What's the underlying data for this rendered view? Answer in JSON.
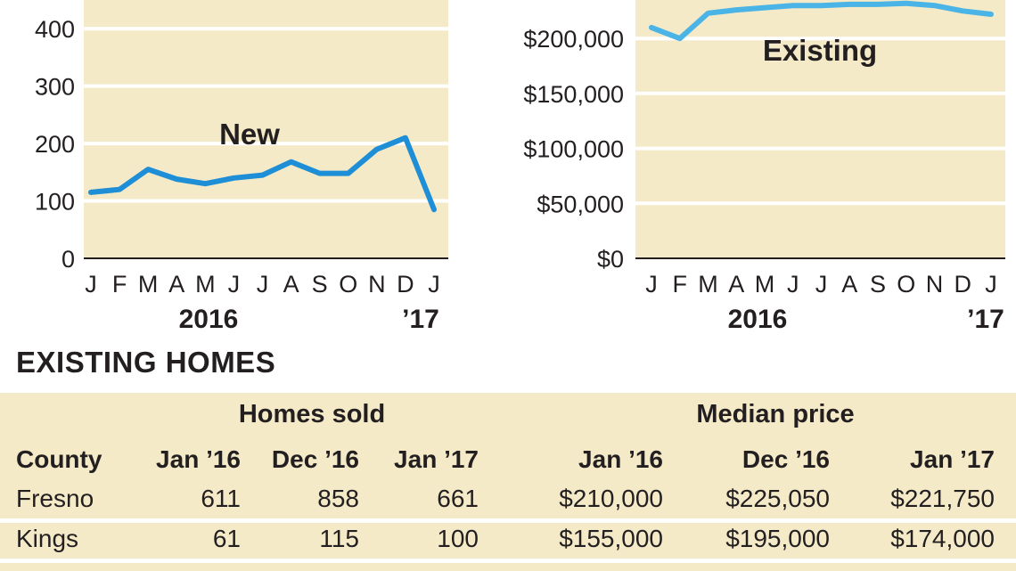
{
  "charts": [
    {
      "type": "line",
      "x": [
        "J",
        "F",
        "M",
        "A",
        "M",
        "J",
        "J",
        "A",
        "S",
        "O",
        "N",
        "D",
        "J"
      ],
      "values": [
        115,
        120,
        155,
        138,
        130,
        140,
        145,
        168,
        148,
        148,
        190,
        210,
        85
      ],
      "ylim": [
        0,
        450
      ],
      "y_ticks": [
        0,
        100,
        200,
        300,
        400
      ],
      "y_tick_labels": [
        "0",
        "100",
        "200",
        "300",
        "400"
      ],
      "year_labels": [
        "2016",
        "’17"
      ],
      "annotation": "New",
      "grid": true,
      "line_color": "#1e8fd6",
      "plot_bg": "#f4eac8"
    },
    {
      "type": "line",
      "x": [
        "J",
        "F",
        "M",
        "A",
        "M",
        "J",
        "J",
        "A",
        "S",
        "O",
        "N",
        "D",
        "J"
      ],
      "values": [
        210000,
        200000,
        223000,
        226000,
        228000,
        230000,
        230000,
        231000,
        231000,
        232000,
        230000,
        225000,
        222000
      ],
      "ylim": [
        0,
        235000
      ],
      "y_ticks": [
        0,
        50000,
        100000,
        150000,
        200000
      ],
      "y_tick_labels": [
        "$0",
        "$50,000",
        "$100,000",
        "$150,000",
        "$200,000"
      ],
      "year_labels": [
        "2016",
        "’17"
      ],
      "annotation": "Existing",
      "grid": true,
      "line_color": "#4ab4e6",
      "plot_bg": "#f4eac8"
    }
  ],
  "table": {
    "section_title": "EXISTING HOMES",
    "group_headers": [
      "Homes sold",
      "Median price"
    ],
    "columns": [
      "County",
      "Jan ’16",
      "Dec ’16",
      "Jan ’17",
      "Jan ’16",
      "Dec ’16",
      "Jan ’17"
    ],
    "rows": [
      [
        "Fresno",
        "611",
        "858",
        "661",
        "$210,000",
        "$225,050",
        "$221,750"
      ],
      [
        "Kings",
        "61",
        "115",
        "100",
        "$155,000",
        "$195,000",
        "$174,000"
      ]
    ]
  }
}
